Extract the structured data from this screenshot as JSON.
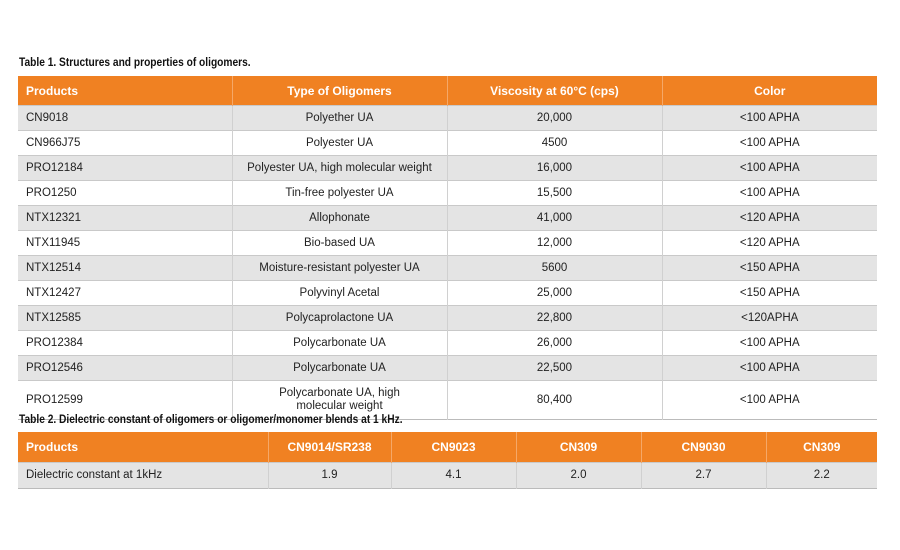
{
  "table1": {
    "title": "Table 1. Structures and properties of oligomers.",
    "headers": [
      "Products",
      "Type of Oligomers",
      "Viscosity at 60°C (cps)",
      "Color"
    ],
    "rows": [
      [
        "CN9018",
        "Polyether UA",
        "20,000",
        "<100 APHA"
      ],
      [
        "CN966J75",
        "Polyester UA",
        "4500",
        "<100 APHA"
      ],
      [
        "PRO12184",
        "Polyester UA, high molecular weight",
        "16,000",
        "<100 APHA"
      ],
      [
        "PRO1250",
        "Tin-free polyester UA",
        "15,500",
        "<100 APHA"
      ],
      [
        "NTX12321",
        "Allophonate",
        "41,000",
        "<120 APHA"
      ],
      [
        "NTX11945",
        "Bio-based UA",
        "12,000",
        "<120 APHA"
      ],
      [
        "NTX12514",
        "Moisture-resistant polyester UA",
        "5600",
        "<150 APHA"
      ],
      [
        "NTX12427",
        "Polyvinyl Acetal",
        "25,000",
        "<150 APHA"
      ],
      [
        "NTX12585",
        "Polycaprolactone UA",
        "22,800",
        "<120APHA"
      ],
      [
        "PRO12384",
        "Polycarbonate UA",
        "26,000",
        "<100 APHA"
      ],
      [
        "PRO12546",
        "Polycarbonate UA",
        "22,500",
        "<100 APHA"
      ],
      [
        "PRO12599",
        "Polycarbonate UA, high molecular weight",
        "80,400",
        "<100 APHA"
      ]
    ]
  },
  "table2": {
    "title": "Table 2. Dielectric constant of oligomers or oligomer/monomer blends at 1 kHz.",
    "headers": [
      "Products",
      "CN9014/SR238",
      "CN9023",
      "CN309",
      "CN9030",
      "CN309"
    ],
    "rows": [
      [
        "Dielectric constant at 1kHz",
        "1.9",
        "4.1",
        "2.0",
        "2.7",
        "2.2"
      ]
    ]
  }
}
